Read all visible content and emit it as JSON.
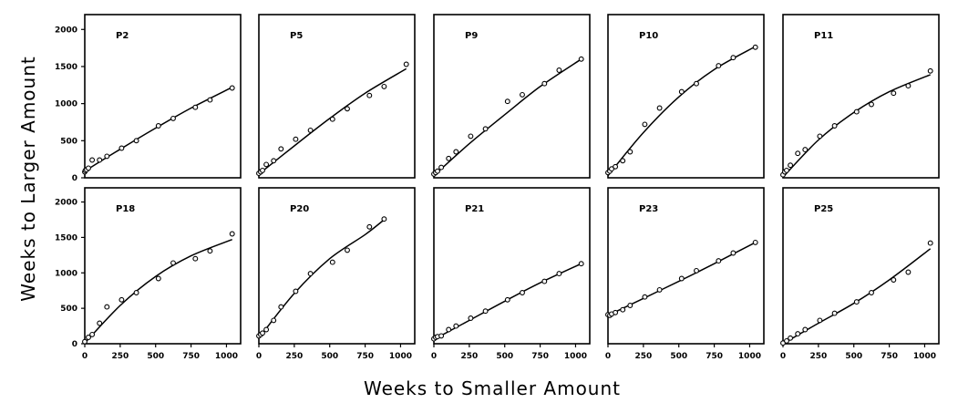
{
  "figure": {
    "xlabel": "Weeks to Smaller Amount",
    "ylabel": "Weeks to Larger Amount"
  },
  "chart_data": {
    "type": "scatter",
    "layout": "small-multiples 2x5",
    "xlim": [
      0,
      1100
    ],
    "ylim": [
      0,
      2200
    ],
    "x_ticks": [
      "0",
      "250",
      "500",
      "750",
      "1000"
    ],
    "y_ticks": [
      "0",
      "500",
      "1000",
      "1500",
      "2000"
    ],
    "fit": "smooth curve per panel",
    "panels": [
      {
        "name": "P2",
        "points": [
          [
            0,
            80
          ],
          [
            4,
            100
          ],
          [
            13,
            110
          ],
          [
            26,
            130
          ],
          [
            52,
            240
          ],
          [
            104,
            240
          ],
          [
            156,
            290
          ],
          [
            260,
            400
          ],
          [
            364,
            500
          ],
          [
            520,
            700
          ],
          [
            624,
            800
          ],
          [
            780,
            950
          ],
          [
            884,
            1050
          ],
          [
            1040,
            1210
          ]
        ],
        "fit": [
          [
            0,
            90
          ],
          [
            250,
            385
          ],
          [
            500,
            670
          ],
          [
            750,
            940
          ],
          [
            1040,
            1220
          ]
        ]
      },
      {
        "name": "P5",
        "points": [
          [
            0,
            60
          ],
          [
            13,
            80
          ],
          [
            26,
            100
          ],
          [
            52,
            180
          ],
          [
            104,
            230
          ],
          [
            156,
            390
          ],
          [
            260,
            520
          ],
          [
            364,
            640
          ],
          [
            520,
            790
          ],
          [
            624,
            930
          ],
          [
            780,
            1110
          ],
          [
            884,
            1230
          ],
          [
            1040,
            1530
          ]
        ],
        "fit": [
          [
            0,
            50
          ],
          [
            250,
            430
          ],
          [
            500,
            800
          ],
          [
            750,
            1140
          ],
          [
            1040,
            1470
          ]
        ]
      },
      {
        "name": "P9",
        "points": [
          [
            0,
            50
          ],
          [
            13,
            70
          ],
          [
            26,
            90
          ],
          [
            52,
            140
          ],
          [
            104,
            260
          ],
          [
            156,
            350
          ],
          [
            260,
            560
          ],
          [
            364,
            660
          ],
          [
            520,
            1030
          ],
          [
            624,
            1120
          ],
          [
            780,
            1270
          ],
          [
            884,
            1450
          ],
          [
            1040,
            1600
          ]
        ],
        "fit": [
          [
            0,
            30
          ],
          [
            250,
            460
          ],
          [
            500,
            850
          ],
          [
            750,
            1230
          ],
          [
            1040,
            1600
          ]
        ]
      },
      {
        "name": "P10",
        "points": [
          [
            0,
            70
          ],
          [
            13,
            90
          ],
          [
            26,
            120
          ],
          [
            52,
            150
          ],
          [
            104,
            230
          ],
          [
            156,
            350
          ],
          [
            260,
            720
          ],
          [
            364,
            940
          ],
          [
            520,
            1160
          ],
          [
            624,
            1270
          ],
          [
            780,
            1510
          ],
          [
            884,
            1620
          ],
          [
            1040,
            1760
          ]
        ],
        "fit": [
          [
            0,
            30
          ],
          [
            250,
            610
          ],
          [
            500,
            1090
          ],
          [
            750,
            1460
          ],
          [
            1040,
            1770
          ]
        ]
      },
      {
        "name": "P11",
        "points": [
          [
            0,
            40
          ],
          [
            13,
            80
          ],
          [
            26,
            100
          ],
          [
            52,
            170
          ],
          [
            104,
            330
          ],
          [
            156,
            380
          ],
          [
            260,
            560
          ],
          [
            364,
            700
          ],
          [
            520,
            890
          ],
          [
            624,
            990
          ],
          [
            780,
            1140
          ],
          [
            884,
            1240
          ],
          [
            1040,
            1440
          ]
        ],
        "fit": [
          [
            0,
            10
          ],
          [
            250,
            510
          ],
          [
            500,
            880
          ],
          [
            750,
            1160
          ],
          [
            1040,
            1390
          ]
        ]
      },
      {
        "name": "P18",
        "points": [
          [
            0,
            30
          ],
          [
            26,
            90
          ],
          [
            52,
            130
          ],
          [
            104,
            290
          ],
          [
            156,
            520
          ],
          [
            260,
            620
          ],
          [
            364,
            720
          ],
          [
            520,
            920
          ],
          [
            624,
            1140
          ],
          [
            780,
            1200
          ],
          [
            884,
            1310
          ],
          [
            1040,
            1550
          ]
        ],
        "fit": [
          [
            0,
            10
          ],
          [
            250,
            540
          ],
          [
            500,
            950
          ],
          [
            750,
            1240
          ],
          [
            1040,
            1470
          ]
        ]
      },
      {
        "name": "P20",
        "points": [
          [
            0,
            110
          ],
          [
            13,
            130
          ],
          [
            26,
            150
          ],
          [
            52,
            200
          ],
          [
            104,
            330
          ],
          [
            156,
            520
          ],
          [
            260,
            740
          ],
          [
            364,
            990
          ],
          [
            520,
            1150
          ],
          [
            624,
            1320
          ],
          [
            780,
            1650
          ],
          [
            884,
            1760
          ]
        ],
        "fit": [
          [
            0,
            80
          ],
          [
            250,
            710
          ],
          [
            500,
            1200
          ],
          [
            750,
            1540
          ],
          [
            884,
            1750
          ]
        ]
      },
      {
        "name": "P21",
        "points": [
          [
            0,
            70
          ],
          [
            13,
            90
          ],
          [
            26,
            100
          ],
          [
            52,
            110
          ],
          [
            104,
            200
          ],
          [
            156,
            250
          ],
          [
            260,
            360
          ],
          [
            364,
            460
          ],
          [
            520,
            620
          ],
          [
            624,
            720
          ],
          [
            780,
            880
          ],
          [
            884,
            990
          ],
          [
            1040,
            1130
          ]
        ],
        "fit": [
          [
            0,
            60
          ],
          [
            250,
            330
          ],
          [
            500,
            600
          ],
          [
            750,
            860
          ],
          [
            1040,
            1130
          ]
        ]
      },
      {
        "name": "P23",
        "points": [
          [
            0,
            410
          ],
          [
            13,
            400
          ],
          [
            26,
            420
          ],
          [
            52,
            440
          ],
          [
            104,
            480
          ],
          [
            156,
            540
          ],
          [
            260,
            660
          ],
          [
            364,
            760
          ],
          [
            520,
            920
          ],
          [
            624,
            1030
          ],
          [
            780,
            1170
          ],
          [
            884,
            1280
          ],
          [
            1040,
            1430
          ]
        ],
        "fit": [
          [
            0,
            400
          ],
          [
            250,
            640
          ],
          [
            500,
            880
          ],
          [
            750,
            1130
          ],
          [
            1040,
            1430
          ]
        ]
      },
      {
        "name": "P25",
        "points": [
          [
            0,
            10
          ],
          [
            26,
            40
          ],
          [
            52,
            80
          ],
          [
            104,
            140
          ],
          [
            156,
            200
          ],
          [
            260,
            330
          ],
          [
            364,
            430
          ],
          [
            520,
            590
          ],
          [
            624,
            720
          ],
          [
            780,
            900
          ],
          [
            884,
            1010
          ],
          [
            1040,
            1420
          ]
        ],
        "fit": [
          [
            0,
            0
          ],
          [
            250,
            290
          ],
          [
            500,
            570
          ],
          [
            750,
            900
          ],
          [
            1040,
            1340
          ]
        ]
      }
    ]
  }
}
